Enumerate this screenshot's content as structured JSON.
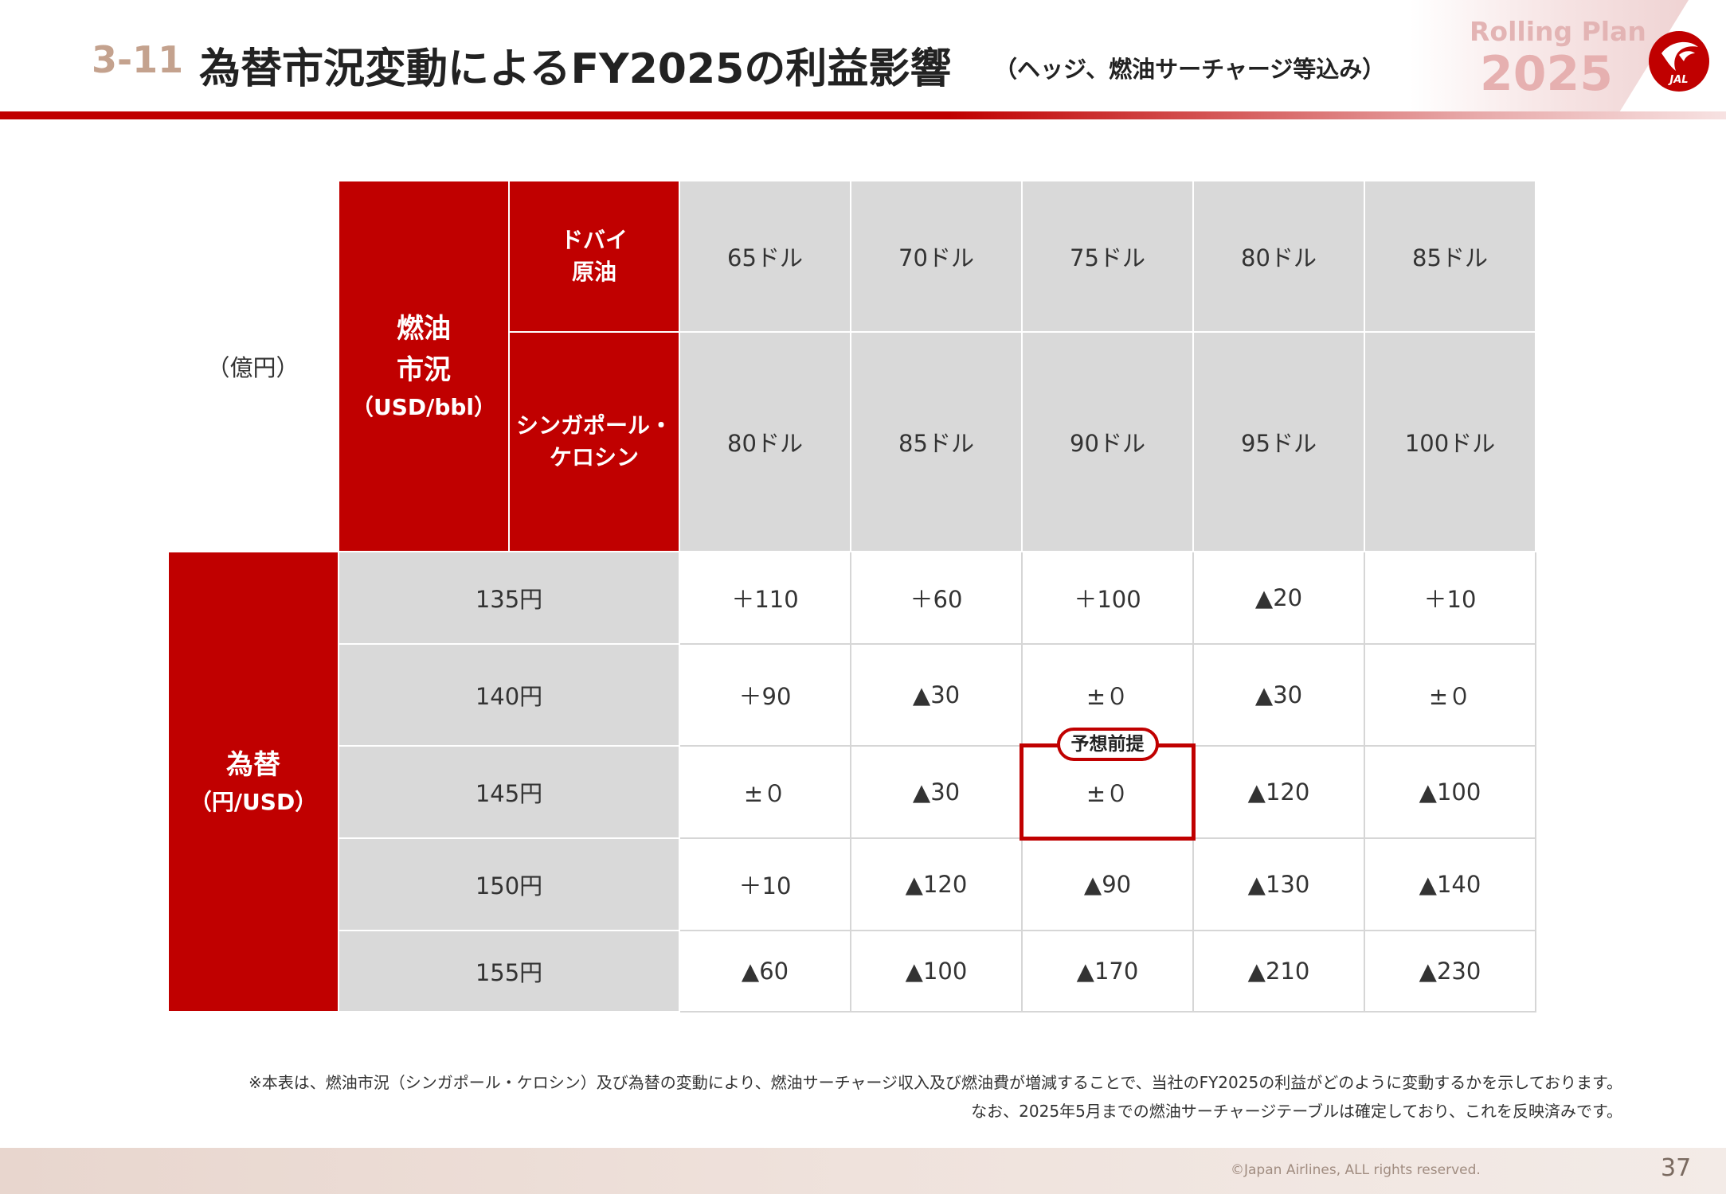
{
  "header": {
    "section_number": "3-11",
    "title": "為替市況変動によるFY2025の利益影響",
    "subtitle": "（ヘッジ、燃油サーチャージ等込み）",
    "plan_label": "Rolling Plan",
    "plan_year": "2025",
    "logo_text": "JAL",
    "colors": {
      "brand_red": "#c00000",
      "section_number": "#c4a28e"
    }
  },
  "table": {
    "unit_label": "（億円）",
    "fuel_header": {
      "line1": "燃油",
      "line2": "市況",
      "line3": "（USD/bbl）"
    },
    "dubai_label": {
      "line1": "ドバイ",
      "line2": "原油"
    },
    "singapore_label": {
      "line1": "シンガポール・",
      "line2": "ケロシン"
    },
    "dubai_prices": [
      "65ドル",
      "70ドル",
      "75ドル",
      "80ドル",
      "85ドル"
    ],
    "singapore_prices": [
      "80ドル",
      "85ドル",
      "90ドル",
      "95ドル",
      "100ドル"
    ],
    "fx_header": {
      "line1": "為替",
      "line2": "（円/USD）"
    },
    "rows": [
      {
        "rate": "135円",
        "values": [
          "＋110",
          "＋60",
          "＋100",
          "▲20",
          "＋10"
        ]
      },
      {
        "rate": "140円",
        "values": [
          "＋90",
          "▲30",
          "±０",
          "▲30",
          "±０"
        ]
      },
      {
        "rate": "145円",
        "values": [
          "±０",
          "▲30",
          "±０",
          "▲120",
          "▲100"
        ]
      },
      {
        "rate": "150円",
        "values": [
          "＋10",
          "▲120",
          "▲90",
          "▲130",
          "▲140"
        ]
      },
      {
        "rate": "155円",
        "values": [
          "▲60",
          "▲100",
          "▲170",
          "▲210",
          "▲230"
        ]
      }
    ],
    "highlight": {
      "row": 2,
      "col": 2,
      "label": "予想前提"
    }
  },
  "notes": {
    "line1": "※本表は、燃油市況（シンガポール・ケロシン）及び為替の変動により、燃油サーチャージ収入及び燃油費が増減することで、当社のFY2025の利益がどのように変動するかを示しております。",
    "line2": "なお、2025年5月までの燃油サーチャージテーブルは確定しており、これを反映済みです。"
  },
  "footer": {
    "copyright": "©Japan Airlines, ALL rights reserved.",
    "page_number": "37"
  }
}
